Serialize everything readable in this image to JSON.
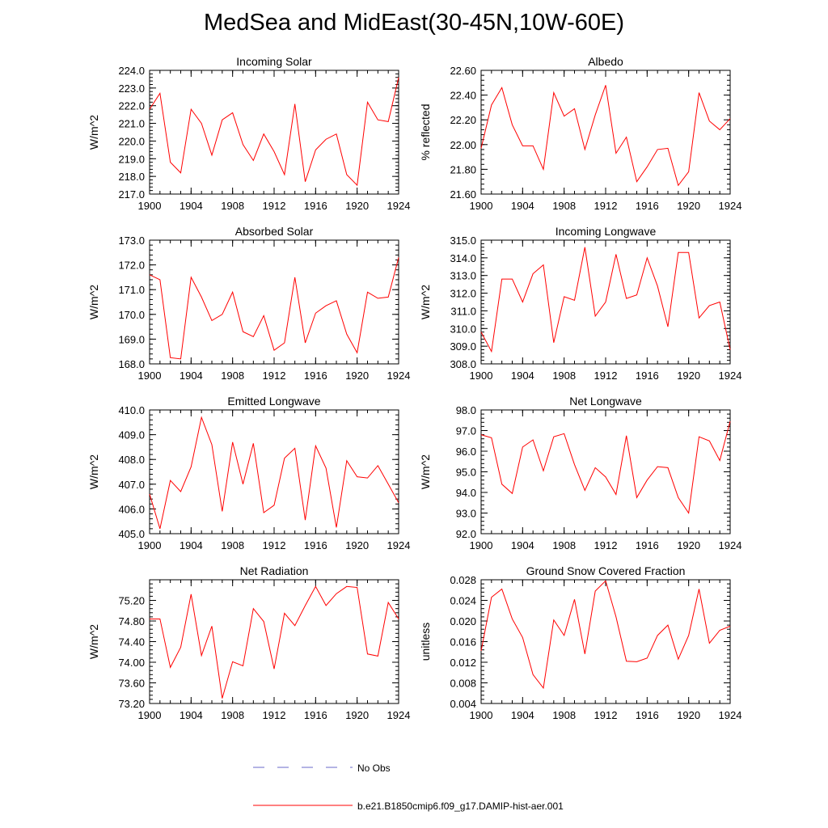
{
  "title": "MedSea and MidEast(30-45N,10W-60E)",
  "colors": {
    "model": "#ff0000",
    "obs": "#6a6ac8",
    "axis": "#000000"
  },
  "legend": {
    "obs_label": "No Obs",
    "model_label": "b.e21.B1850cmip6.f09_g17.DAMIP-hist-aer.001"
  },
  "chart_data": [
    {
      "type": "line",
      "title": "Incoming Solar",
      "xlabel": "",
      "ylabel": "W/m^2",
      "xlim": [
        1900,
        1924
      ],
      "ylim": [
        217.0,
        224.0
      ],
      "xticks": [
        1900,
        1904,
        1908,
        1912,
        1916,
        1920,
        1924
      ],
      "yticks": [
        217.0,
        218.0,
        219.0,
        220.0,
        221.0,
        222.0,
        223.0,
        224.0
      ],
      "ydecimals": 1,
      "x": [
        1900,
        1901,
        1902,
        1903,
        1904,
        1905,
        1906,
        1907,
        1908,
        1909,
        1910,
        1911,
        1912,
        1913,
        1914,
        1915,
        1916,
        1917,
        1918,
        1919,
        1920,
        1921,
        1922,
        1923,
        1924
      ],
      "series": [
        {
          "values": [
            221.8,
            222.7,
            218.8,
            218.2,
            221.8,
            221.0,
            219.2,
            221.2,
            221.6,
            219.8,
            218.9,
            220.4,
            219.4,
            218.1,
            222.1,
            217.7,
            219.5,
            220.1,
            220.4,
            218.1,
            217.5,
            222.2,
            221.2,
            221.1,
            223.6
          ]
        }
      ]
    },
    {
      "type": "line",
      "title": "Albedo",
      "xlabel": "",
      "ylabel": "% reflected",
      "xlim": [
        1900,
        1924
      ],
      "ylim": [
        21.6,
        22.6
      ],
      "xticks": [
        1900,
        1904,
        1908,
        1912,
        1916,
        1920,
        1924
      ],
      "yticks": [
        21.6,
        21.8,
        22.0,
        22.2,
        22.4,
        22.6
      ],
      "ydecimals": 2,
      "x": [
        1900,
        1901,
        1902,
        1903,
        1904,
        1905,
        1906,
        1907,
        1908,
        1909,
        1910,
        1911,
        1912,
        1913,
        1914,
        1915,
        1916,
        1917,
        1918,
        1919,
        1920,
        1921,
        1922,
        1923,
        1924
      ],
      "series": [
        {
          "values": [
            21.97,
            22.32,
            22.46,
            22.16,
            21.99,
            21.99,
            21.8,
            22.42,
            22.23,
            22.29,
            21.96,
            22.24,
            22.48,
            21.93,
            22.06,
            21.7,
            21.82,
            21.96,
            21.97,
            21.67,
            21.78,
            22.42,
            22.19,
            22.12,
            22.21
          ]
        }
      ]
    },
    {
      "type": "line",
      "title": "Absorbed Solar",
      "xlabel": "",
      "ylabel": "W/m^2",
      "xlim": [
        1900,
        1924
      ],
      "ylim": [
        168.0,
        173.0
      ],
      "xticks": [
        1900,
        1904,
        1908,
        1912,
        1916,
        1920,
        1924
      ],
      "yticks": [
        168.0,
        169.0,
        170.0,
        171.0,
        172.0,
        173.0
      ],
      "ydecimals": 1,
      "x": [
        1900,
        1901,
        1902,
        1903,
        1904,
        1905,
        1906,
        1907,
        1908,
        1909,
        1910,
        1911,
        1912,
        1913,
        1914,
        1915,
        1916,
        1917,
        1918,
        1919,
        1920,
        1921,
        1922,
        1923,
        1924
      ],
      "series": [
        {
          "values": [
            171.6,
            171.4,
            168.25,
            168.2,
            171.5,
            170.7,
            169.75,
            170.0,
            170.9,
            169.3,
            169.1,
            169.95,
            168.55,
            168.85,
            171.5,
            168.85,
            170.05,
            170.35,
            170.55,
            169.2,
            168.45,
            170.9,
            170.65,
            170.7,
            172.3
          ]
        }
      ]
    },
    {
      "type": "line",
      "title": "Incoming Longwave",
      "xlabel": "",
      "ylabel": "W/m^2",
      "xlim": [
        1900,
        1924
      ],
      "ylim": [
        308.0,
        315.0
      ],
      "xticks": [
        1900,
        1904,
        1908,
        1912,
        1916,
        1920,
        1924
      ],
      "yticks": [
        308.0,
        309.0,
        310.0,
        311.0,
        312.0,
        313.0,
        314.0,
        315.0
      ],
      "ydecimals": 1,
      "x": [
        1900,
        1901,
        1902,
        1903,
        1904,
        1905,
        1906,
        1907,
        1908,
        1909,
        1910,
        1911,
        1912,
        1913,
        1914,
        1915,
        1916,
        1917,
        1918,
        1919,
        1920,
        1921,
        1922,
        1923,
        1924
      ],
      "series": [
        {
          "values": [
            309.8,
            308.7,
            312.8,
            312.8,
            311.5,
            313.1,
            313.6,
            309.2,
            311.8,
            311.6,
            314.6,
            310.7,
            311.5,
            314.2,
            311.7,
            311.9,
            314.0,
            312.4,
            310.1,
            314.3,
            314.3,
            310.6,
            311.3,
            311.5,
            308.8
          ]
        }
      ]
    },
    {
      "type": "line",
      "title": "Emitted Longwave",
      "xlabel": "",
      "ylabel": "W/m^2",
      "xlim": [
        1900,
        1924
      ],
      "ylim": [
        405.0,
        410.0
      ],
      "xticks": [
        1900,
        1904,
        1908,
        1912,
        1916,
        1920,
        1924
      ],
      "yticks": [
        405.0,
        406.0,
        407.0,
        408.0,
        409.0,
        410.0
      ],
      "ydecimals": 1,
      "x": [
        1900,
        1901,
        1902,
        1903,
        1904,
        1905,
        1906,
        1907,
        1908,
        1909,
        1910,
        1911,
        1912,
        1913,
        1914,
        1915,
        1916,
        1917,
        1918,
        1919,
        1920,
        1921,
        1922,
        1923,
        1924
      ],
      "series": [
        {
          "values": [
            406.6,
            405.2,
            407.15,
            406.7,
            407.7,
            409.7,
            408.6,
            405.9,
            408.7,
            407.0,
            408.65,
            405.85,
            406.15,
            408.05,
            408.45,
            405.55,
            408.55,
            407.65,
            405.25,
            407.95,
            407.3,
            407.25,
            407.75,
            407.0,
            406.25
          ]
        }
      ]
    },
    {
      "type": "line",
      "title": "Net Longwave",
      "xlabel": "",
      "ylabel": "W/m^2",
      "xlim": [
        1900,
        1924
      ],
      "ylim": [
        92.0,
        98.0
      ],
      "xticks": [
        1900,
        1904,
        1908,
        1912,
        1916,
        1920,
        1924
      ],
      "yticks": [
        92.0,
        93.0,
        94.0,
        95.0,
        96.0,
        97.0,
        98.0
      ],
      "ydecimals": 1,
      "x": [
        1900,
        1901,
        1902,
        1903,
        1904,
        1905,
        1906,
        1907,
        1908,
        1909,
        1910,
        1911,
        1912,
        1913,
        1914,
        1915,
        1916,
        1917,
        1918,
        1919,
        1920,
        1921,
        1922,
        1923,
        1924
      ],
      "series": [
        {
          "values": [
            96.8,
            96.65,
            94.4,
            93.95,
            96.2,
            96.55,
            95.05,
            96.7,
            96.85,
            95.35,
            94.1,
            95.2,
            94.75,
            93.9,
            96.75,
            93.75,
            94.6,
            95.25,
            95.2,
            93.75,
            93.0,
            96.7,
            96.5,
            95.55,
            97.45
          ]
        }
      ]
    },
    {
      "type": "line",
      "title": "Net Radiation",
      "xlabel": "",
      "ylabel": "W/m^2",
      "xlim": [
        1900,
        1924
      ],
      "ylim": [
        73.2,
        75.6
      ],
      "xticks": [
        1900,
        1904,
        1908,
        1912,
        1916,
        1920,
        1924
      ],
      "yticks": [
        73.2,
        73.6,
        74.0,
        74.4,
        74.8,
        75.2
      ],
      "ydecimals": 2,
      "x": [
        1900,
        1901,
        1902,
        1903,
        1904,
        1905,
        1906,
        1907,
        1908,
        1909,
        1910,
        1911,
        1912,
        1913,
        1914,
        1915,
        1916,
        1917,
        1918,
        1919,
        1920,
        1921,
        1922,
        1923,
        1924
      ],
      "series": [
        {
          "values": [
            74.84,
            74.84,
            73.9,
            74.29,
            75.32,
            74.13,
            74.7,
            73.3,
            74.01,
            73.93,
            75.04,
            74.79,
            73.87,
            74.95,
            74.71,
            75.1,
            75.47,
            75.1,
            75.33,
            75.47,
            75.45,
            74.16,
            74.12,
            75.16,
            74.84
          ]
        }
      ]
    },
    {
      "type": "line",
      "title": "Ground Snow Covered Fraction",
      "xlabel": "",
      "ylabel": "unitless",
      "xlim": [
        1900,
        1924
      ],
      "ylim": [
        0.004,
        0.028
      ],
      "xticks": [
        1900,
        1904,
        1908,
        1912,
        1916,
        1920,
        1924
      ],
      "yticks": [
        0.004,
        0.008,
        0.012,
        0.016,
        0.02,
        0.024,
        0.028
      ],
      "ydecimals": 3,
      "x": [
        1900,
        1901,
        1902,
        1903,
        1904,
        1905,
        1906,
        1907,
        1908,
        1909,
        1910,
        1911,
        1912,
        1913,
        1914,
        1915,
        1916,
        1917,
        1918,
        1919,
        1920,
        1921,
        1922,
        1923,
        1924
      ],
      "series": [
        {
          "values": [
            0.0142,
            0.0246,
            0.0262,
            0.0204,
            0.0168,
            0.0096,
            0.007,
            0.0202,
            0.0172,
            0.0242,
            0.0136,
            0.0258,
            0.0278,
            0.0208,
            0.0122,
            0.0121,
            0.0128,
            0.0172,
            0.0192,
            0.0126,
            0.0172,
            0.0262,
            0.0157,
            0.0182,
            0.019
          ]
        }
      ]
    }
  ]
}
